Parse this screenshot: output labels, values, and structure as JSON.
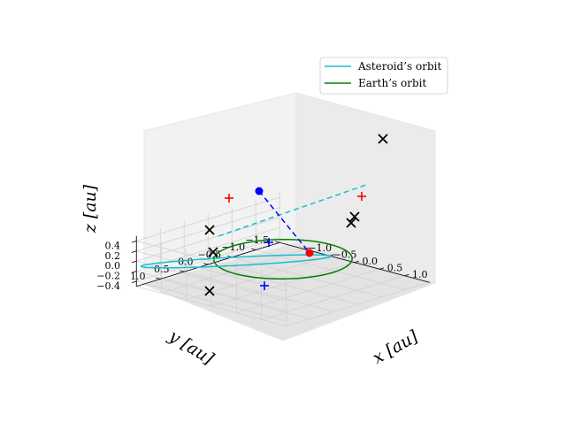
{
  "chart_data": {
    "type": "line3d",
    "xlabel": "x [au]",
    "ylabel": "y [au]",
    "zlabel": "z [au]",
    "xlim": [
      -1.5,
      1.5
    ],
    "ylim": [
      -1.5,
      1.5
    ],
    "zlim": [
      -0.5,
      0.5
    ],
    "x_ticks": [
      "−1.0",
      "−0.5",
      "0.0",
      "0.5",
      "1.0"
    ],
    "y_ticks": [
      "1.0",
      "0.5",
      "0.0",
      "−0.5",
      "−1.0",
      "−1.5"
    ],
    "z_ticks": [
      "0.4",
      "0.2",
      "0.0",
      "−0.2",
      "−0.4"
    ],
    "grid": true,
    "legend_position": "top-right",
    "series": [
      {
        "name": "Asteroid’s orbit",
        "color": "#17becf",
        "description": "tilted ellipse, a ≈ 1.4 au, e ≈ 0.5, inclination ≈ 18°"
      },
      {
        "name": "Earth’s orbit",
        "color": "#008000",
        "description": "circle r = 1 au in z = 0 plane"
      }
    ],
    "points": {
      "blue_node": {
        "color": "#0000ff",
        "x": -0.6,
        "y": 0.8,
        "z": 0.0
      },
      "red_node": {
        "color": "#ff0000",
        "x": 0.9,
        "y": -0.45,
        "z": 0.0
      }
    },
    "markers": {
      "x_marks": "black",
      "plus_red": "#ff0000",
      "plus_blue": "#0000ff"
    }
  }
}
